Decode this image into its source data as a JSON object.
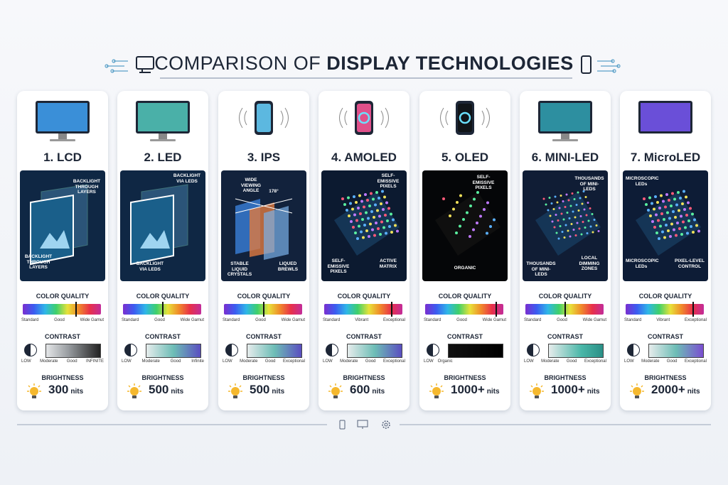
{
  "header": {
    "title_regular": "COMPARISON OF",
    "title_bold": "DISPLAY TECHNOLOGIES"
  },
  "cards": [
    {
      "name": "1. LCD",
      "illustration_labels": [
        "BACKLIGHT THROUGH LAYERS",
        "BACKLIGHT THROUGH LAYERS"
      ],
      "color_quality": {
        "label": "COLOR QUALITY",
        "scale": [
          "Standard",
          "Good",
          "Wide Gamut"
        ]
      },
      "contrast": {
        "label": "CONTRAST",
        "scale": [
          "LOW",
          "Moderate",
          "Good",
          "INFINITE"
        ]
      },
      "brightness": {
        "label": "BRIGHTNESS",
        "value": "300",
        "unit": "nits"
      }
    },
    {
      "name": "2. LED",
      "illustration_labels": [
        "BACKLIGHT VIA LEDS",
        "BACKLIGHT VIA LEDS"
      ],
      "color_quality": {
        "label": "COLOR QUALITY",
        "scale": [
          "Standard",
          "Good",
          "Wide Gamut"
        ]
      },
      "contrast": {
        "label": "CONTRAST",
        "scale": [
          "LOW",
          "Moderate",
          "Good",
          "Infinite"
        ]
      },
      "brightness": {
        "label": "BRIGHTNESS",
        "value": "500",
        "unit": "nits"
      }
    },
    {
      "name": "3. IPS",
      "illustration_labels": [
        "WIDE VIEWING ANGLE",
        "178°",
        "STABLE LIQUID CRYSTALS",
        "LIQUED BREWLS"
      ],
      "color_quality": {
        "label": "COLOR QUALITY",
        "scale": [
          "Standard",
          "Good",
          "Wide Gamut"
        ]
      },
      "contrast": {
        "label": "CONTRAST",
        "scale": [
          "LOW",
          "Moderate",
          "Good",
          "Exceptional"
        ]
      },
      "brightness": {
        "label": "BRIGHTNESS",
        "value": "500",
        "unit": "nits"
      }
    },
    {
      "name": "4. AMOLED",
      "illustration_labels": [
        "SELF-EMISSIVE PIXELS",
        "SELF-EMISSIVE PIXELS",
        "ACTIVE MATRIX"
      ],
      "color_quality": {
        "label": "COLOR QUALITY",
        "scale": [
          "Standard",
          "Vibrant",
          "Exceptional"
        ]
      },
      "contrast": {
        "label": "CONTRAST",
        "scale": [
          "LOW",
          "Moderate",
          "Good",
          "Exceptional"
        ]
      },
      "brightness": {
        "label": "BRIGHTNESS",
        "value": "600",
        "unit": "nits"
      }
    },
    {
      "name": "5. OLED",
      "illustration_labels": [
        "SELF-EMISSIVE PIXELS",
        "ORGANIC"
      ],
      "color_quality": {
        "label": "COLOR QUALITY",
        "scale": [
          "Standard",
          "Good",
          "Wide Gamut"
        ]
      },
      "contrast": {
        "label": "CONTRAST",
        "scale": [
          "LOW",
          "Organic"
        ]
      },
      "brightness": {
        "label": "BRIGHTNESS",
        "value": "1000+",
        "unit": "nits"
      }
    },
    {
      "name": "6. MINI-LED",
      "illustration_labels": [
        "THOUSANDS OF MINI-LEDS",
        "THOUSANDS OF MINI-LEDS",
        "LOCAL DIMMING ZONES"
      ],
      "color_quality": {
        "label": "COLOR QUALITY",
        "scale": [
          "Standard",
          "Good",
          "Wide Gamut"
        ]
      },
      "contrast": {
        "label": "CONTRAST",
        "scale": [
          "LOW",
          "Moderate",
          "Good",
          "Exceptional"
        ]
      },
      "brightness": {
        "label": "BRIGHTNESS",
        "value": "1000+",
        "unit": "nits"
      }
    },
    {
      "name": "7. MicroLED",
      "illustration_labels": [
        "MICROSCOPIC LEDs",
        "MICROSCOPIC LEDs",
        "PIXEL-LEVEL CONTROL"
      ],
      "color_quality": {
        "label": "COLOR QUALITY",
        "scale": [
          "Standard",
          "Vibrant",
          "Exceptional"
        ]
      },
      "contrast": {
        "label": "CONTRAST",
        "scale": [
          "LOW",
          "Moderate",
          "Good",
          "Exceptional"
        ]
      },
      "brightness": {
        "label": "BRIGHTNESS",
        "value": "2000+",
        "unit": "nits"
      }
    }
  ]
}
